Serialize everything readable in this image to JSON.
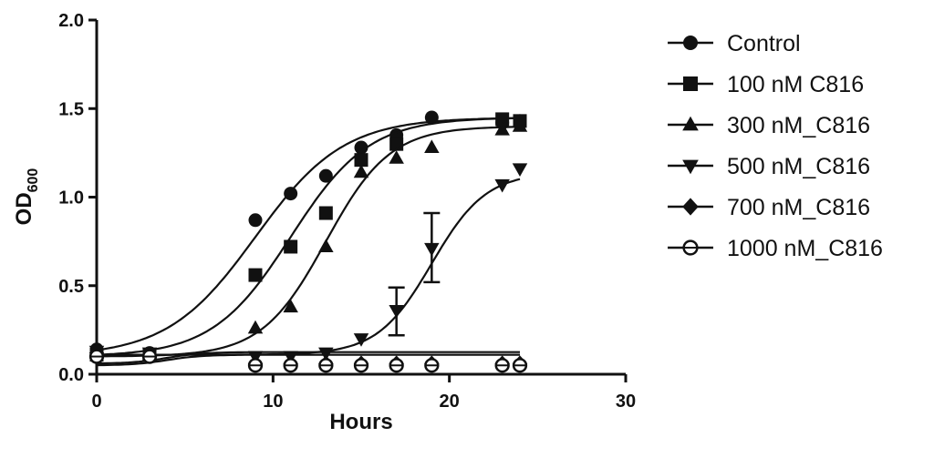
{
  "chart_data": {
    "type": "line",
    "xlabel": "Hours",
    "ylabel": "OD",
    "ylabel_subscript": "600",
    "xlim": [
      0,
      30
    ],
    "ylim": [
      0,
      2.0
    ],
    "x_ticks": [
      "0",
      "10",
      "20",
      "30"
    ],
    "y_ticks": [
      "0.0",
      "0.5",
      "1.0",
      "1.5",
      "2.0"
    ],
    "grid": false,
    "legend_position": "right",
    "series": [
      {
        "name": "Control",
        "marker": "circle",
        "points": [
          [
            0,
            0.14
          ],
          [
            3,
            0.12
          ],
          [
            9,
            0.87
          ],
          [
            11,
            1.02
          ],
          [
            13,
            1.12
          ],
          [
            15,
            1.28
          ],
          [
            17,
            1.35
          ],
          [
            19,
            1.45
          ],
          [
            23,
            1.42
          ],
          [
            24,
            1.43
          ]
        ],
        "fit": {
          "bottom": 0.1,
          "top": 1.45,
          "mid": 9.0,
          "slope": 0.4
        }
      },
      {
        "name": "100 nM C816",
        "marker": "square",
        "points": [
          [
            0,
            0.11
          ],
          [
            3,
            0.11
          ],
          [
            9,
            0.56
          ],
          [
            11,
            0.72
          ],
          [
            13,
            0.91
          ],
          [
            15,
            1.21
          ],
          [
            17,
            1.3
          ],
          [
            23,
            1.44
          ],
          [
            24,
            1.43
          ]
        ],
        "fit": {
          "bottom": 0.1,
          "top": 1.45,
          "mid": 11.0,
          "slope": 0.45
        }
      },
      {
        "name": "300 nM_C816",
        "marker": "triangle-up",
        "points": [
          [
            0,
            0.12
          ],
          [
            3,
            0.11
          ],
          [
            9,
            0.26
          ],
          [
            11,
            0.38
          ],
          [
            13,
            0.72
          ],
          [
            15,
            1.14
          ],
          [
            17,
            1.22
          ],
          [
            19,
            1.28
          ],
          [
            23,
            1.38
          ],
          [
            24,
            1.4
          ]
        ],
        "fit": {
          "bottom": 0.1,
          "top": 1.4,
          "mid": 13.0,
          "slope": 0.55
        }
      },
      {
        "name": "500 nM_C816",
        "marker": "triangle-down",
        "points": [
          [
            0,
            0.13
          ],
          [
            3,
            0.12
          ],
          [
            9,
            0.1
          ],
          [
            11,
            0.1
          ],
          [
            13,
            0.12
          ],
          [
            15,
            0.2
          ],
          [
            17,
            0.36
          ],
          [
            19,
            0.71
          ],
          [
            23,
            1.07
          ],
          [
            24,
            1.16
          ]
        ],
        "error_bars": [
          [
            17,
            0.22,
            0.49
          ],
          [
            19,
            0.52,
            0.91
          ]
        ],
        "fit": {
          "bottom": 0.11,
          "top": 1.14,
          "mid": 19.0,
          "slope": 0.65
        }
      },
      {
        "name": "700 nM_C816",
        "marker": "diamond",
        "points": [
          [
            0,
            0.12
          ],
          [
            3,
            0.11
          ],
          [
            9,
            0.06
          ],
          [
            11,
            0.06
          ],
          [
            13,
            0.06
          ],
          [
            15,
            0.06
          ],
          [
            17,
            0.06
          ],
          [
            19,
            0.06
          ],
          [
            23,
            0.06
          ],
          [
            24,
            0.06
          ]
        ],
        "fit": {
          "bottom": 0.06,
          "top": 0.125,
          "mid": 4.0,
          "slope": 1.0
        }
      },
      {
        "name": "1000 nM_C816",
        "marker": "open-circle",
        "points": [
          [
            0,
            0.1
          ],
          [
            3,
            0.1
          ],
          [
            9,
            0.05
          ],
          [
            11,
            0.05
          ],
          [
            13,
            0.05
          ],
          [
            15,
            0.05
          ],
          [
            17,
            0.05
          ],
          [
            19,
            0.05
          ],
          [
            23,
            0.05
          ],
          [
            24,
            0.05
          ]
        ],
        "fit": {
          "bottom": 0.05,
          "top": 0.11,
          "mid": 4.0,
          "slope": 1.0
        }
      }
    ]
  }
}
